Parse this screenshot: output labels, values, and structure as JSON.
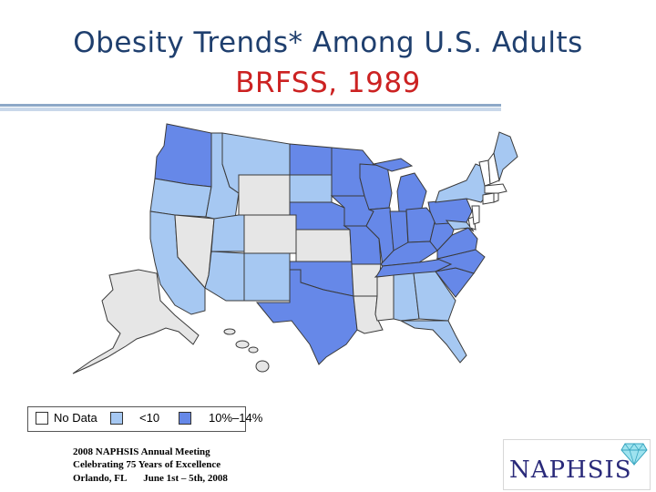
{
  "title": {
    "line1": "Obesity Trends* Among U.S. Adults",
    "line2": "BRFSS, 1989"
  },
  "legend": {
    "items": [
      {
        "label": "No Data",
        "color": "#ffffff"
      },
      {
        "label": "<10",
        "color": "#a6c8f2"
      },
      {
        "label": "10%–14%",
        "color": "#6688e8"
      }
    ]
  },
  "map_colors": {
    "no_data": "#ffffff",
    "lt10": "#a6c8f2",
    "p10_14": "#6688e8",
    "grey_unlabeled": "#e6e6e6",
    "border": "#3a3a3a"
  },
  "states": {
    "no_data": [
      "WY",
      "NV",
      "CO",
      "KS",
      "AR",
      "LA",
      "MS",
      "AK",
      "HI",
      "NJ",
      "VT",
      "NH",
      "MA",
      "CT",
      "RI",
      "DE"
    ],
    "lt10": [
      "MT",
      "ID",
      "OR",
      "CA",
      "UT",
      "AZ",
      "NM",
      "SD",
      "AL",
      "GA",
      "FL",
      "NY",
      "ME",
      "MD"
    ],
    "p10_14": [
      "WA",
      "ND",
      "MN",
      "NE",
      "IA",
      "MO",
      "OK",
      "TX",
      "WI",
      "MI",
      "IL",
      "IN",
      "OH",
      "KY",
      "TN",
      "SC",
      "NC",
      "VA",
      "WV",
      "PA"
    ]
  },
  "footer": {
    "line1": "2008 NAPHSIS Annual Meeting",
    "line2": "Celebrating 75 Years of Excellence",
    "line3a": "Orlando, FL",
    "line3b": "June 1st – 5th, 2008"
  },
  "logo": {
    "text": "NAPHSIS",
    "icon": "diamond-icon"
  }
}
